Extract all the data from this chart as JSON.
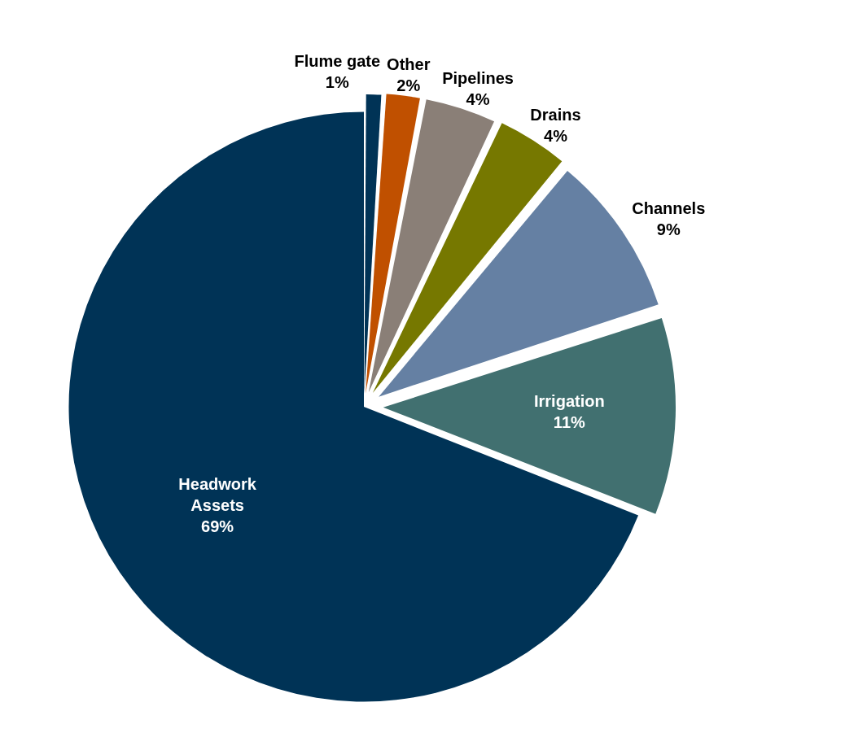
{
  "chart_data": {
    "type": "pie",
    "categories": [
      "Flume gate",
      "Other",
      "Pipelines",
      "Drains",
      "Channels",
      "Irrigation",
      "Headwork Assets"
    ],
    "values": [
      1,
      2,
      4,
      4,
      9,
      11,
      69
    ],
    "value_labels": [
      "1%",
      "2%",
      "4%",
      "4%",
      "9%",
      "11%",
      "69%"
    ],
    "colors": [
      "#003356",
      "#c05000",
      "#8a7f77",
      "#767800",
      "#6580a3",
      "#417070",
      "#003356"
    ],
    "legend": false
  }
}
